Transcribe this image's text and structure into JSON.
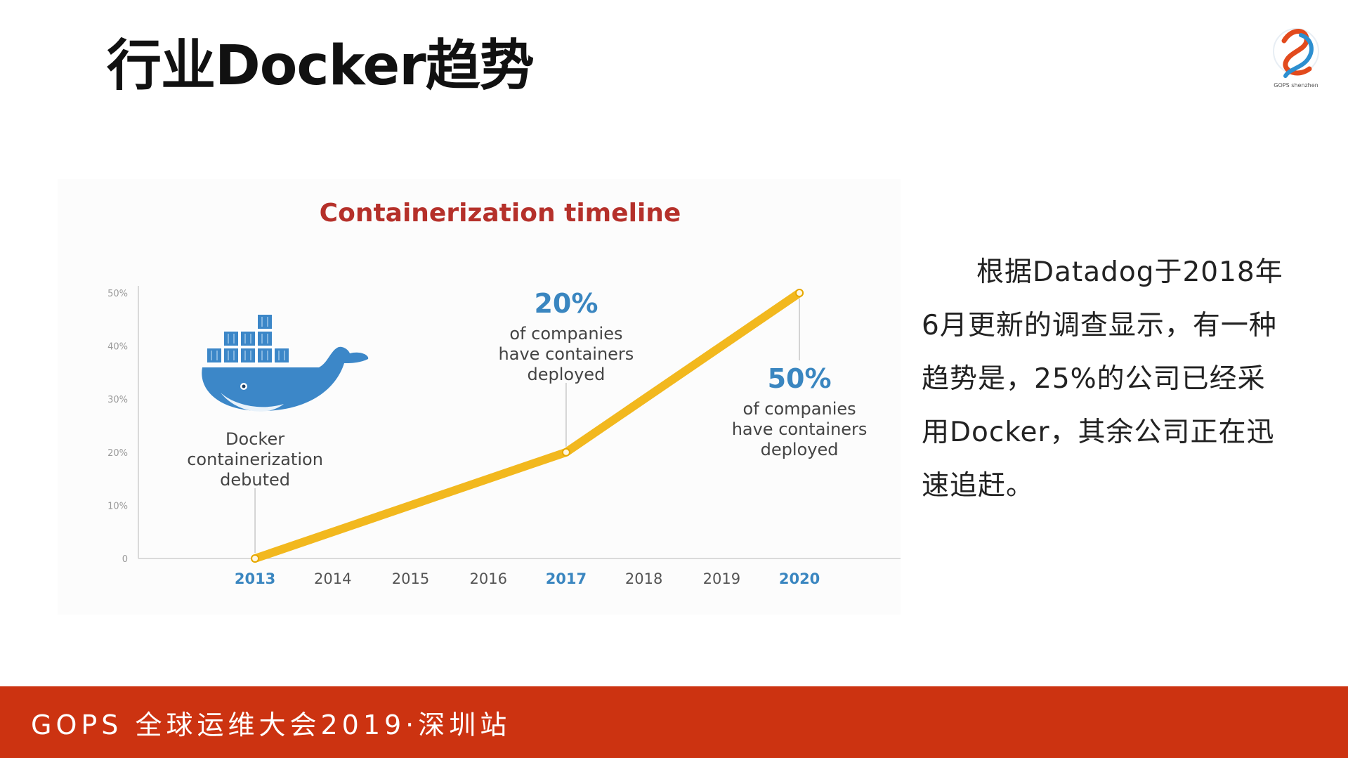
{
  "slide": {
    "title": "行业Docker趋势",
    "paragraph": "根据Datadog于2018年6月更新的调查显示，有一种趋势是，25%的公司已经采用Docker，其余公司正在迅速追赶。"
  },
  "logo": {
    "icon": "gops-logo-icon",
    "text": "GOPS shenzhen"
  },
  "footer": {
    "text": "GOPS 全球运维大会2019·深圳站",
    "color": "#cc3311"
  },
  "chart_data": {
    "type": "line",
    "title": "Containerization timeline",
    "x": [
      2013,
      2014,
      2015,
      2016,
      2017,
      2018,
      2019,
      2020
    ],
    "x_tick_labels": [
      "2013",
      "2014",
      "2015",
      "2016",
      "2017",
      "2018",
      "2019",
      "2020"
    ],
    "highlighted_years": [
      "2013",
      "2017",
      "2020"
    ],
    "y_tick_labels": [
      "0",
      "10%",
      "20%",
      "30%",
      "40%",
      "50%"
    ],
    "ylim": [
      0,
      50
    ],
    "xlim": [
      2011.5,
      2021.3
    ],
    "series": [
      {
        "x": [
          2013,
          2017,
          2020
        ],
        "values": [
          0,
          20,
          50
        ],
        "color": "#f2b81e"
      }
    ],
    "annotations": [
      {
        "year": 2013,
        "lines": [
          "Docker",
          "containerization",
          "debuted"
        ]
      },
      {
        "year": 2017,
        "value": "20%",
        "lines": [
          "of companies",
          "have containers",
          "deployed"
        ]
      },
      {
        "year": 2020,
        "value": "50%",
        "lines": [
          "of companies",
          "have containers",
          "deployed"
        ]
      }
    ],
    "colors": {
      "title": "#b5302a",
      "accent": "#3a86c0",
      "whale": "#3c87c8",
      "axis_text": "#555555"
    },
    "whale_icon": "docker-whale-icon",
    "grid": false
  }
}
